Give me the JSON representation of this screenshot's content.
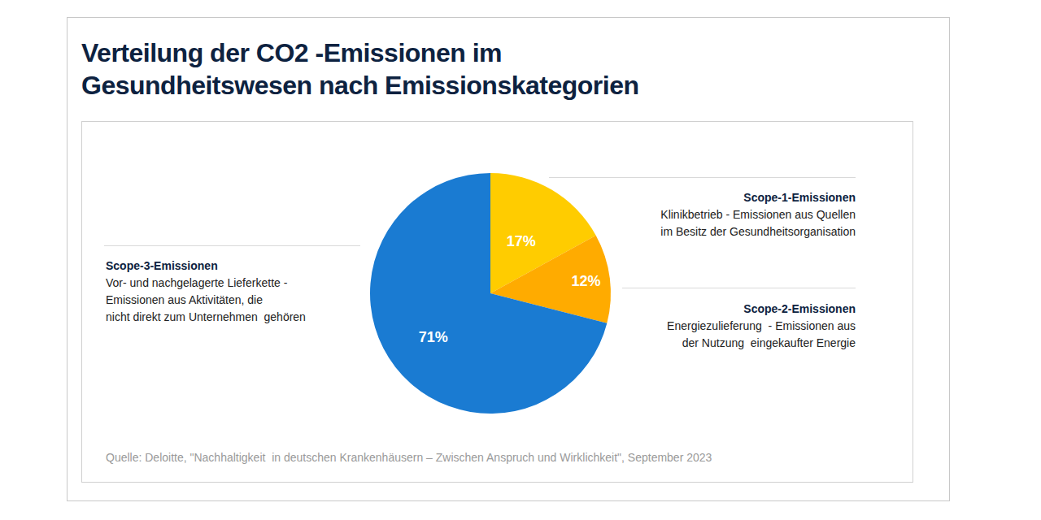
{
  "chart_data": {
    "type": "pie",
    "title": "Verteilung der CO2 -Emissionen im Gesundheitswesen nach Emissionskategorien",
    "categories": [
      "Scope-1-Emissionen",
      "Scope-2-Emissionen",
      "Scope-3-Emissionen"
    ],
    "values": [
      17,
      12,
      71
    ],
    "value_labels": [
      "17%",
      "12%",
      "71%"
    ],
    "colors": [
      "#ffcc00",
      "#ffab00",
      "#1a7bd2"
    ],
    "data_labels": true,
    "annotations": [
      [
        "Klinikbetrieb - Emissionen aus Quellen",
        "im Besitz der Gesundheitsorganisation"
      ],
      [
        "Energiezulieferung  - Emissionen aus",
        "der Nutzung  eingekaufter Energie"
      ],
      [
        "Vor- und nachgelagerte Lieferkette -",
        "Emissionen aus Aktivitäten, die",
        "nicht direkt zum Unternehmen  gehören"
      ]
    ],
    "source": "Quelle: Deloitte, \"Nachhaltigkeit  in deutschen Krankenhäusern – Zwischen Anspruch und Wirklichkeit\", September 2023"
  }
}
